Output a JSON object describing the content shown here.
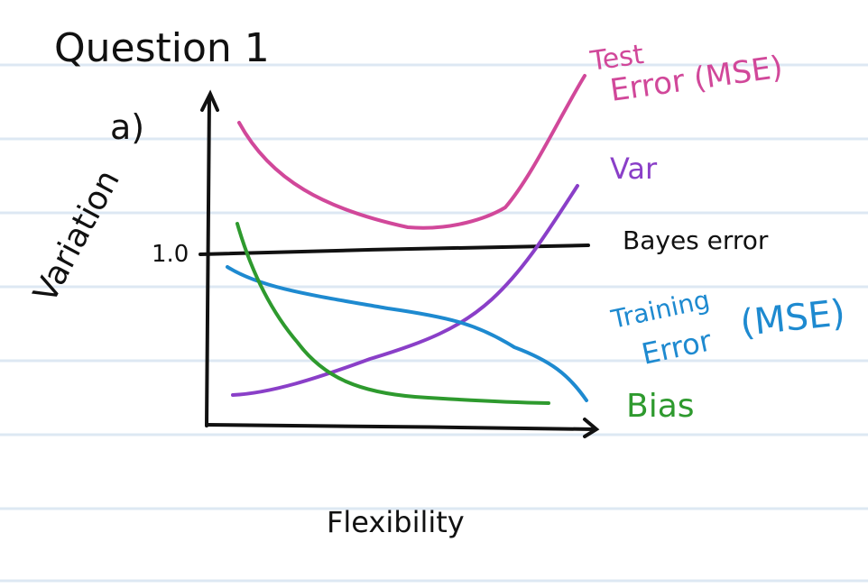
{
  "question": {
    "title": "Question 1",
    "part": "a)"
  },
  "axes": {
    "ylabel": "Variation",
    "xlabel": "Flexibility",
    "y_tick": "1.0"
  },
  "curves": {
    "test_error": {
      "label_line1": "Test",
      "label_line2": "Error (MSE)",
      "color": "#d1489a"
    },
    "var": {
      "label": "Var",
      "color": "#8a3fc8"
    },
    "bayes_error": {
      "label": "Bayes error",
      "color": "#111111"
    },
    "training_error": {
      "label_line1": "Training",
      "label_line2": "Error",
      "label_suffix": "(MSE)",
      "color": "#1e8ad0"
    },
    "bias": {
      "label": "Bias",
      "color": "#2e9a2e"
    }
  },
  "colors": {
    "ruled_line": "#dde8f3",
    "ink": "#111111"
  }
}
